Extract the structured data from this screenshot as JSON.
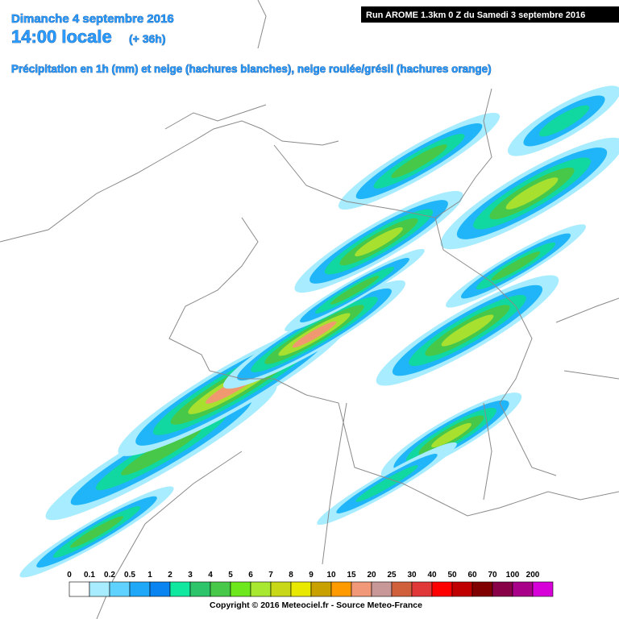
{
  "header": {
    "date": "Dimanche 4 septembre 2016",
    "time": "14:00 locale",
    "lead": "(+ 36h)",
    "subtitle": "Précipitation en 1h (mm) et neige (hachures blanches), neige roulée/grésil (hachures orange)",
    "run": "Run AROME 1.3km 0 Z du Samedi 3 septembre 2016"
  },
  "legend": {
    "labels": [
      "0",
      "0.1",
      "0.2",
      "0.5",
      "1",
      "2",
      "3",
      "4",
      "5",
      "6",
      "7",
      "8",
      "9",
      "10",
      "15",
      "20",
      "25",
      "30",
      "40",
      "50",
      "60",
      "70",
      "100",
      "200"
    ],
    "colors": [
      "#ffffff",
      "#a8ecff",
      "#5fd2ff",
      "#20a8f8",
      "#0a84f0",
      "#10e8a0",
      "#2ec46a",
      "#48c848",
      "#6ee81c",
      "#a8e830",
      "#c8d818",
      "#e8e800",
      "#c8a000",
      "#ff9a00",
      "#f09878",
      "#c89898",
      "#d0603c",
      "#e03838",
      "#ff0000",
      "#c00000",
      "#800000",
      "#880048",
      "#a80088",
      "#d800d8"
    ]
  },
  "footer": {
    "copyright": "Copyright © 2016 Meteociel.fr - Source Meteo-France"
  }
}
